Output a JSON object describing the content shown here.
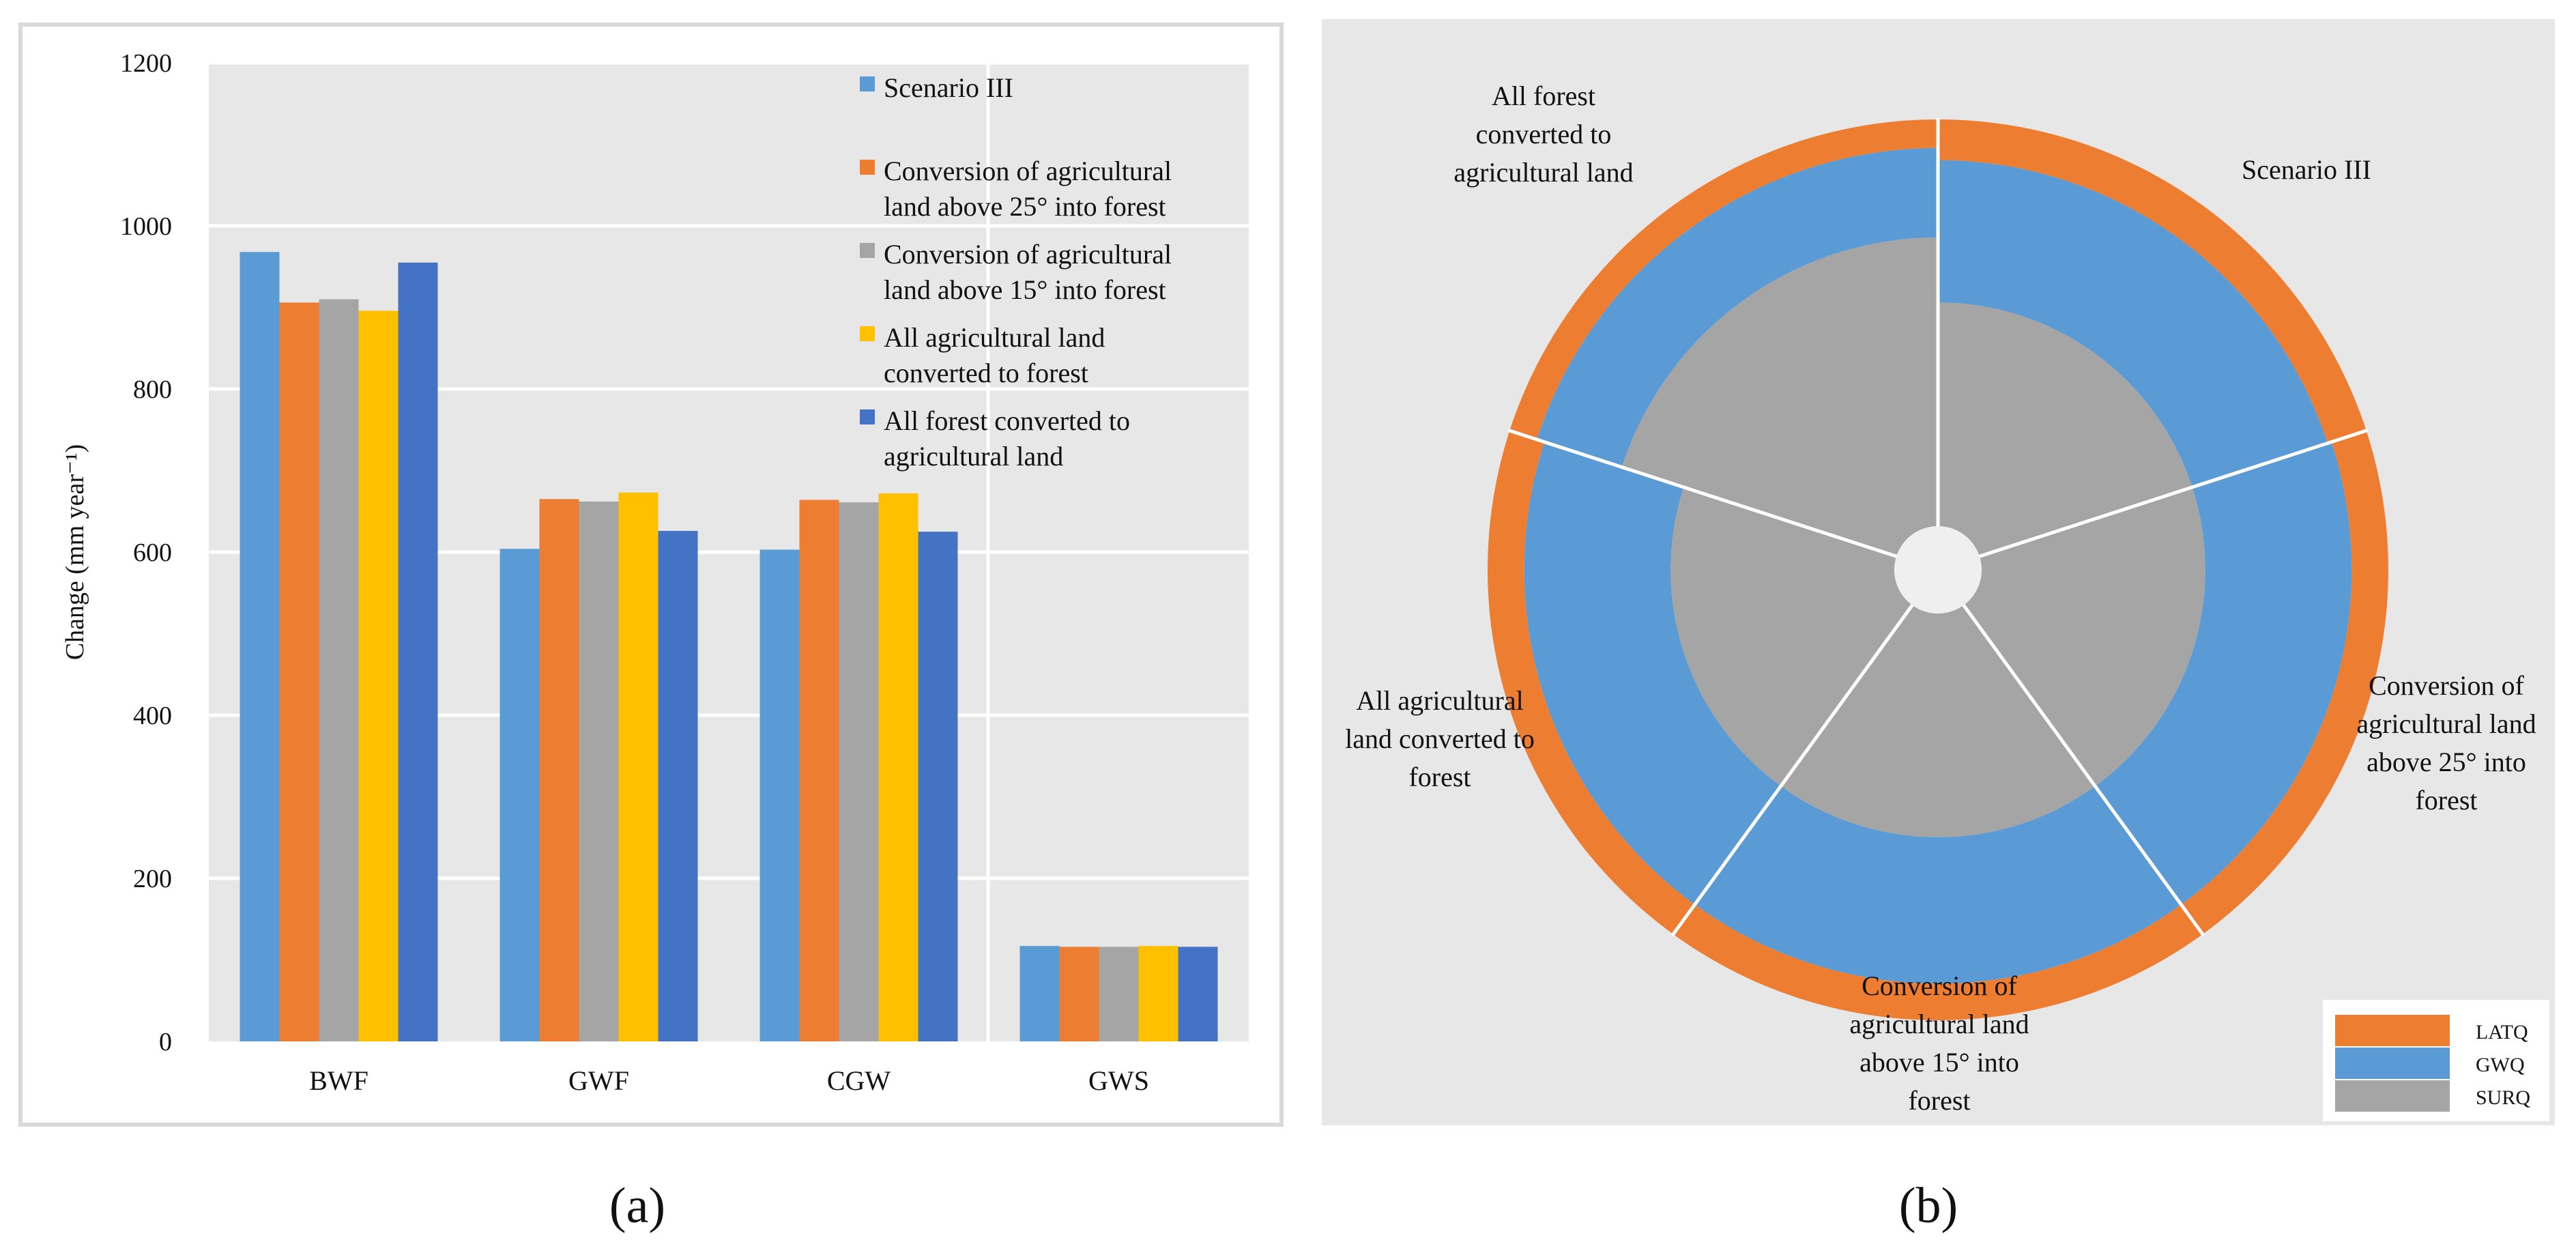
{
  "panel_a": {
    "caption": "(a)"
  },
  "panel_b": {
    "caption": "(b)"
  },
  "colors": {
    "scenario_iii": "#5B9BD5",
    "ag25": "#ED7D31",
    "ag15": "#A5A5A5",
    "all_ag": "#FFC000",
    "all_forest": "#4472C4",
    "LATQ": "#ED7D31",
    "GWQ": "#5B9BD5",
    "SURQ": "#A5A5A5",
    "plot_bg": "#E7E7E7",
    "border": "#D9D9D9"
  },
  "chart_data": [
    {
      "type": "bar",
      "title": "",
      "xlabel": "",
      "ylabel": "Change (mm year⁻¹)",
      "ylim": [
        0,
        1200
      ],
      "yticks": [
        "0",
        "200",
        "400",
        "600",
        "800",
        "1000",
        "1200"
      ],
      "ytick_values": [
        0,
        200,
        400,
        600,
        800,
        1000,
        1200
      ],
      "grid": true,
      "legend_position": "top-right",
      "categories": [
        "BWF",
        "GWF",
        "CGW",
        "GWS"
      ],
      "series": [
        {
          "name": "Scenario III",
          "legend_lines": [
            "Scenario III"
          ],
          "color_key": "scenario_iii",
          "values": [
            968,
            604,
            603,
            117
          ]
        },
        {
          "name": "Conversion of agricultural land above 25° into forest",
          "legend_lines": [
            "Conversion of agricultural",
            "land  above 25° into forest"
          ],
          "color_key": "ag25",
          "values": [
            906,
            665,
            664,
            116
          ]
        },
        {
          "name": "Conversion of agricultural land above 15° into forest",
          "legend_lines": [
            "Conversion of agricultural",
            "land  above 15° into forest"
          ],
          "color_key": "ag15",
          "values": [
            910,
            662,
            661,
            116
          ]
        },
        {
          "name": "All agricultural land converted to forest",
          "legend_lines": [
            "All agricultural land",
            "converted to forest"
          ],
          "color_key": "all_ag",
          "values": [
            896,
            673,
            672,
            117
          ]
        },
        {
          "name": "All forest converted to agricultural land",
          "legend_lines": [
            "All  forest  converted to",
            "agricultural land"
          ],
          "color_key": "all_forest",
          "values": [
            955,
            626,
            625,
            116
          ]
        }
      ]
    },
    {
      "type": "pie",
      "title": "",
      "variant": "stacked-radial (sunburst-like)",
      "legend_position": "bottom-right",
      "legend": [
        "LATQ",
        "GWQ",
        "SURQ"
      ],
      "stack_order_inner_to_outer": [
        "SURQ",
        "GWQ",
        "LATQ"
      ],
      "categories": [
        {
          "name": "Scenario III",
          "label_lines": [
            "Scenario III"
          ]
        },
        {
          "name": "Conversion of agricultural land above 25° into forest",
          "label_lines": [
            "Conversion of",
            "agricultural land",
            "above 25° into",
            "forest"
          ]
        },
        {
          "name": "Conversion of agricultural land above 15° into forest",
          "label_lines": [
            "Conversion of",
            "agricultural land",
            "above 15° into",
            "forest"
          ]
        },
        {
          "name": "All agricultural land converted to forest",
          "label_lines": [
            "All agricultural",
            "land converted to",
            "forest"
          ]
        },
        {
          "name": "All forest converted to agricultural land",
          "label_lines": [
            "All  forest",
            "converted to",
            "agricultural land"
          ]
        }
      ],
      "series": [
        {
          "name": "SURQ",
          "values": [
            0.55,
            0.55,
            0.55,
            0.55,
            0.71
          ]
        },
        {
          "name": "GWQ",
          "values": [
            0.35,
            0.36,
            0.36,
            0.36,
            0.22
          ]
        },
        {
          "name": "LATQ",
          "values": [
            0.1,
            0.09,
            0.09,
            0.09,
            0.07
          ]
        }
      ]
    }
  ]
}
